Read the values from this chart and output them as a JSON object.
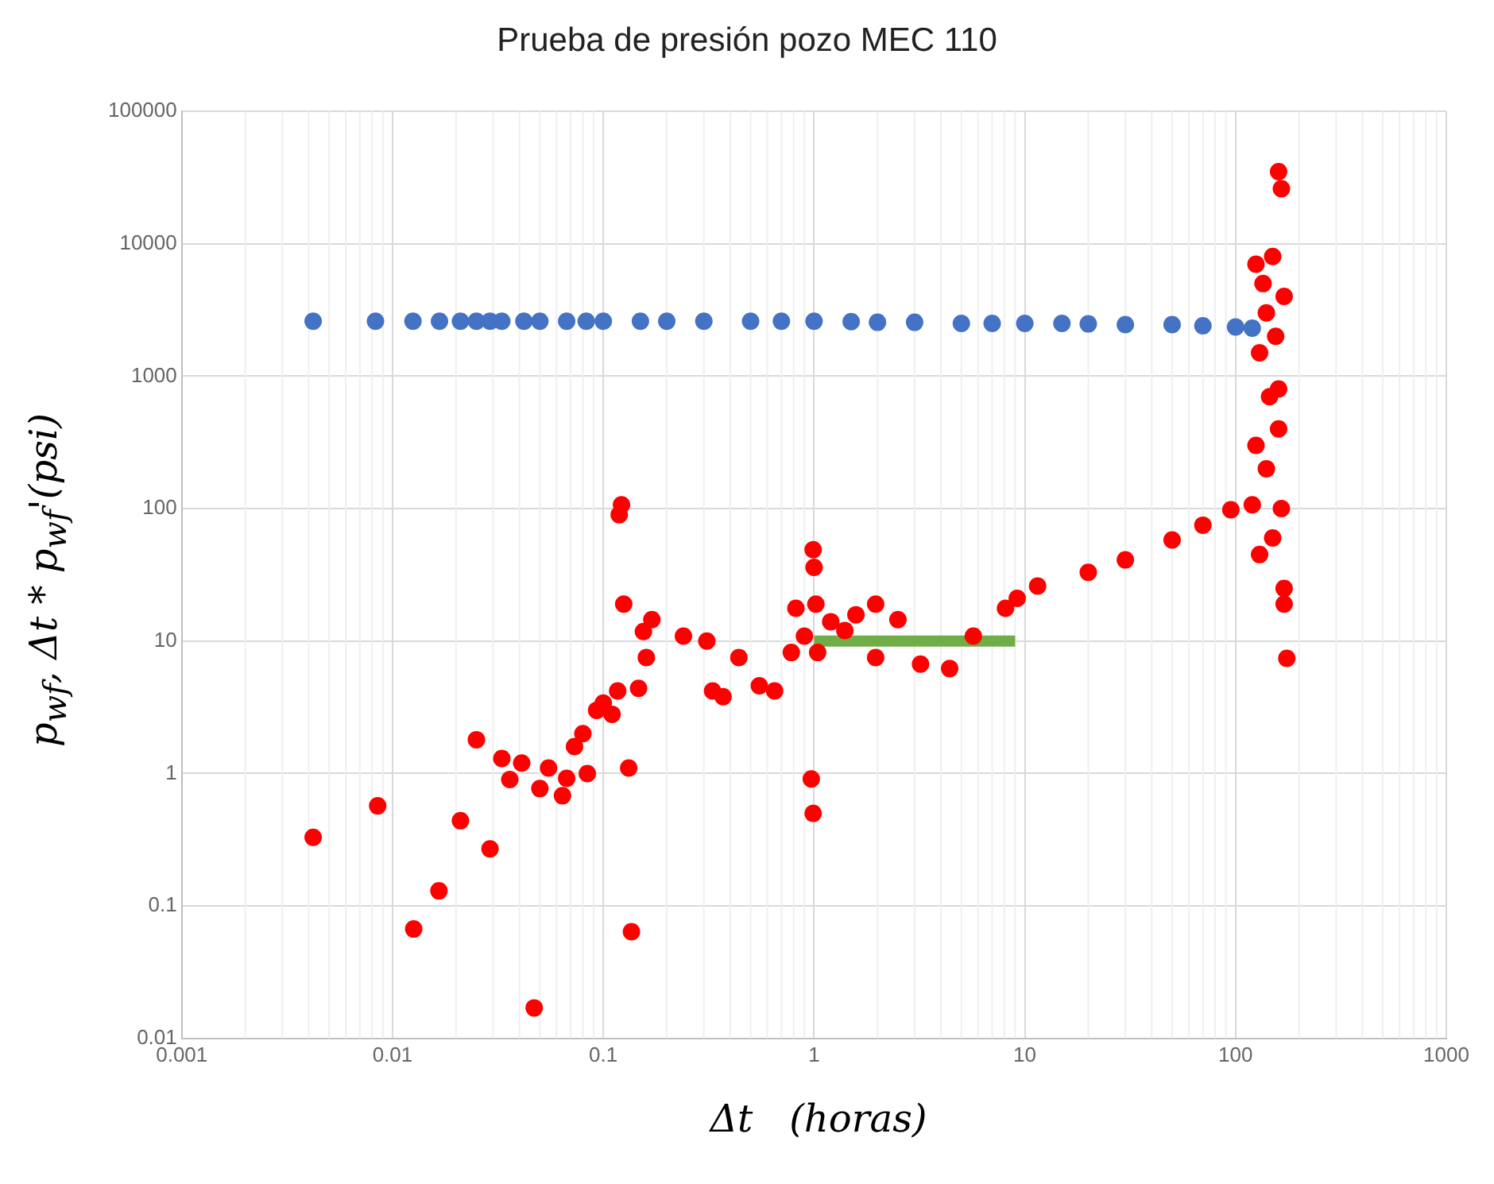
{
  "chart_data": {
    "type": "scatter",
    "title": "Prueba de presión pozo MEC 110",
    "xlabel": "Δt   (horas)",
    "ylabel": "p$_{wf}$, Δt * p$_{wf}$'(psi)",
    "log": "xy",
    "grid": true,
    "legend": false,
    "marker": "circle",
    "xlim": [
      0.001,
      1000
    ],
    "xticks": [
      0.001,
      0.01,
      0.1,
      1,
      10,
      100,
      1000
    ],
    "ylim": [
      0.01,
      100000
    ],
    "yticks": [
      0.01,
      0.1,
      1,
      10,
      100,
      1000,
      10000,
      100000
    ],
    "series": [
      {
        "color": "#4472c4",
        "x": [
          0.0042,
          0.0083,
          0.0125,
          0.0167,
          0.021,
          0.025,
          0.029,
          0.033,
          0.042,
          0.05,
          0.067,
          0.083,
          0.1,
          0.15,
          0.2,
          0.3,
          0.5,
          0.7,
          1,
          1.5,
          2,
          3,
          5,
          7,
          10,
          15,
          20,
          30,
          50,
          70,
          100,
          120
        ],
        "values": [
          2600,
          2600,
          2600,
          2600,
          2600,
          2600,
          2600,
          2600,
          2600,
          2600,
          2600,
          2600,
          2600,
          2600,
          2600,
          2600,
          2600,
          2600,
          2600,
          2580,
          2550,
          2550,
          2500,
          2500,
          2500,
          2500,
          2480,
          2450,
          2450,
          2400,
          2350,
          2300
        ]
      },
      {
        "color": "#ff0000",
        "x": [
          0.0042,
          0.0085,
          0.0126,
          0.0166,
          0.021,
          0.025,
          0.029,
          0.033,
          0.036,
          0.041,
          0.047,
          0.05,
          0.055,
          0.064,
          0.067,
          0.073,
          0.08,
          0.084,
          0.093,
          0.1,
          0.11,
          0.117,
          0.119,
          0.122,
          0.125,
          0.132,
          0.136,
          0.147,
          0.155,
          0.16,
          0.17,
          0.24,
          0.31,
          0.33,
          0.37,
          0.44,
          0.55,
          0.65,
          0.78,
          0.82,
          0.9,
          0.97,
          0.99,
          0.99,
          1.0,
          1.02,
          1.04,
          1.2,
          1.4,
          1.58,
          1.96,
          1.96,
          2.5,
          3.2,
          4.4,
          5.7,
          8.1,
          9.2,
          11.5,
          20,
          30,
          50,
          70,
          95,
          120,
          125,
          125,
          130,
          130,
          135,
          140,
          140,
          145,
          150,
          150,
          155,
          160,
          160,
          165,
          165,
          170,
          170,
          170,
          175,
          160
        ],
        "values": [
          0.33,
          0.57,
          0.067,
          0.13,
          0.44,
          1.8,
          0.27,
          1.3,
          0.9,
          1.2,
          0.017,
          0.77,
          1.1,
          0.68,
          0.92,
          1.6,
          2.0,
          1.0,
          3.0,
          3.4,
          2.8,
          4.2,
          90,
          107,
          19,
          1.1,
          0.064,
          4.4,
          11.8,
          7.5,
          14.5,
          10.9,
          10,
          4.2,
          3.8,
          7.5,
          4.6,
          4.2,
          8.2,
          17.7,
          10.9,
          0.91,
          49,
          0.5,
          36,
          19,
          8.2,
          14,
          12,
          15.8,
          19,
          7.5,
          14.5,
          6.7,
          6.2,
          10.9,
          17.7,
          21,
          26,
          33,
          41,
          58,
          75,
          98,
          107,
          7000,
          300,
          1500,
          45,
          5000,
          200,
          3000,
          700,
          8000,
          60,
          2000,
          400,
          35000,
          26000,
          100,
          4000,
          19,
          25,
          7.4,
          800
        ]
      },
      {
        "type": "line",
        "marker": "none",
        "color": "#70ad47",
        "x": [
          1,
          9
        ],
        "values": [
          10,
          10
        ]
      }
    ]
  }
}
